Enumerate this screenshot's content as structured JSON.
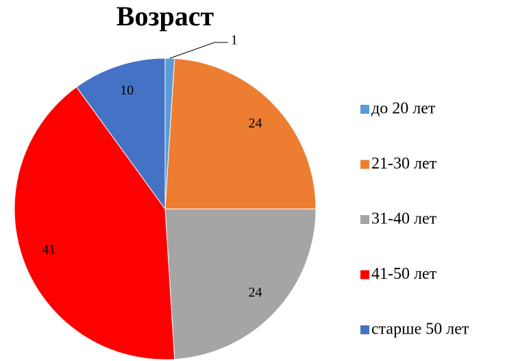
{
  "chart_data": {
    "type": "pie",
    "title": "Возраст",
    "categories": [
      "до 20 лет",
      "21-30 лет",
      "31-40 лет",
      "41-50 лет",
      "старше 50 лет"
    ],
    "values": [
      1,
      24,
      24,
      41,
      10
    ],
    "colors": [
      "#5b9bd5",
      "#ed7d31",
      "#a5a5a5",
      "#ff0000",
      "#4472c4"
    ],
    "legend": "right"
  }
}
